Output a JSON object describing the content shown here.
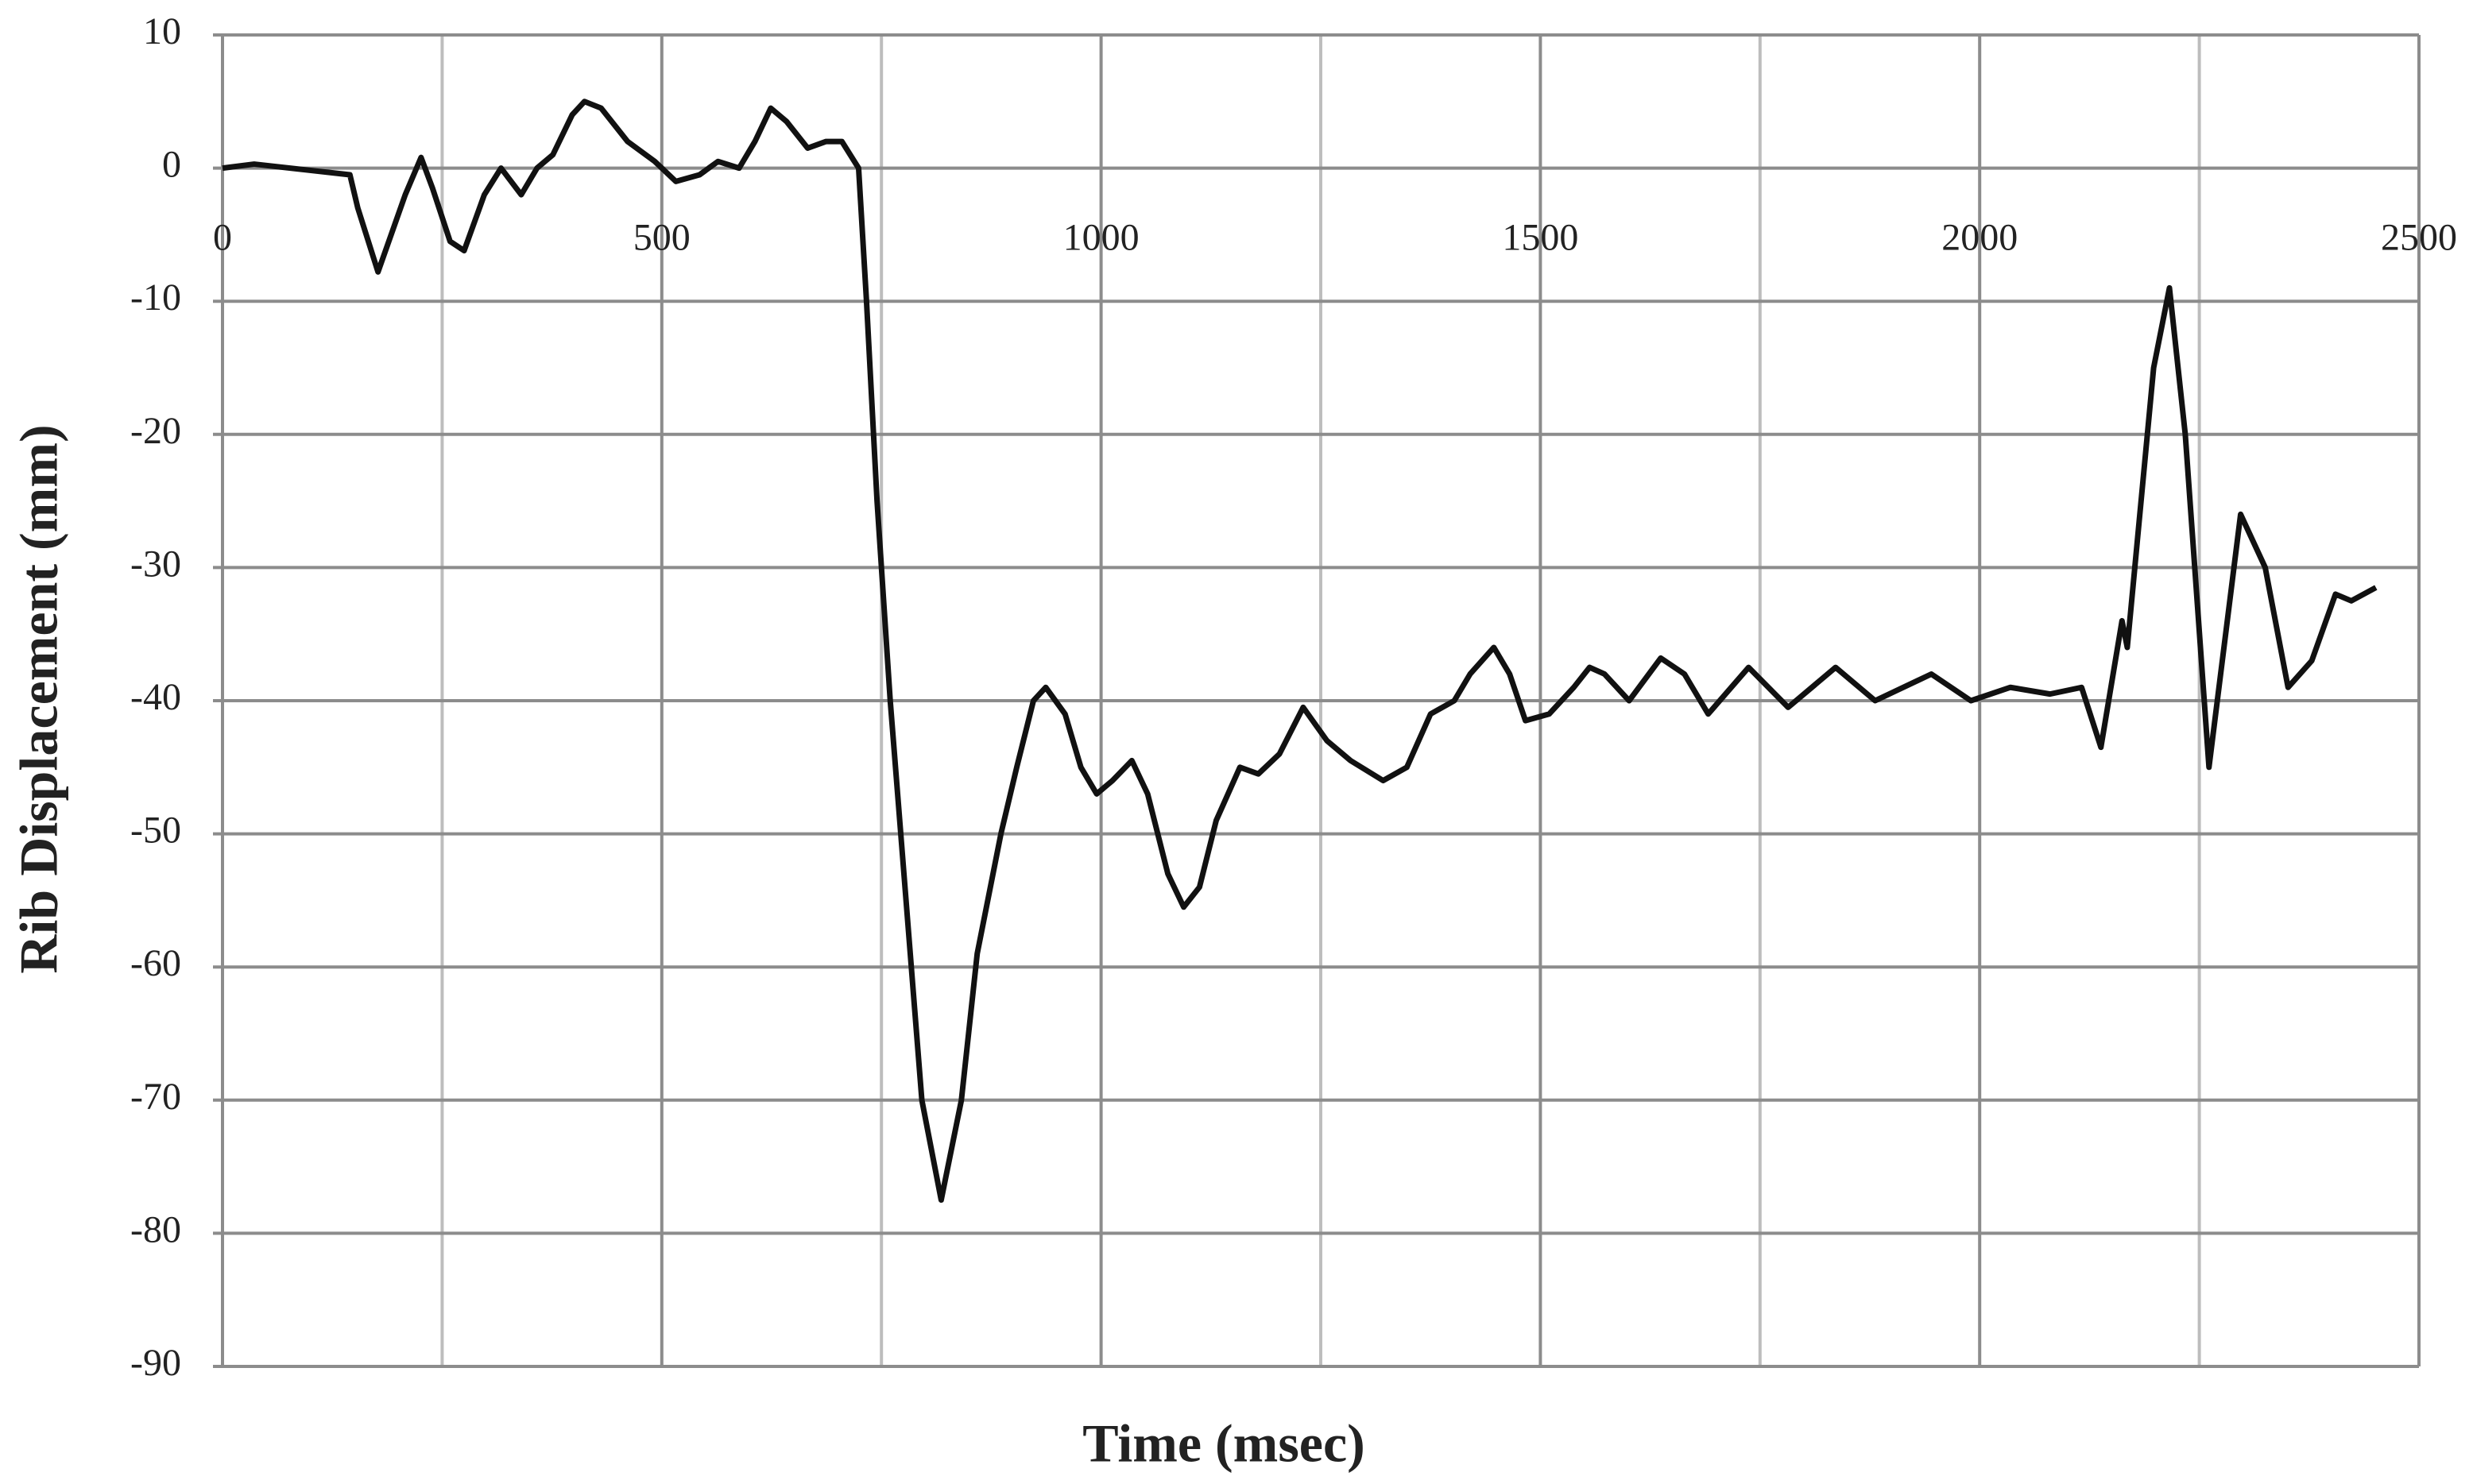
{
  "chart_data": {
    "type": "line",
    "x_label": "Time (msec)",
    "y_label": "Rib Displacement (mm)",
    "x": [
      0,
      36,
      145,
      154,
      177,
      208,
      226,
      239,
      259,
      275,
      298,
      317,
      340,
      358,
      376,
      398,
      412,
      431,
      461,
      492,
      516,
      543,
      564,
      588,
      606,
      624,
      642,
      666,
      687,
      705,
      724,
      733,
      745,
      760,
      778,
      796,
      818,
      841,
      859,
      886,
      904,
      923,
      937,
      959,
      977,
      995,
      1013,
      1035,
      1053,
      1076,
      1094,
      1112,
      1131,
      1158,
      1179,
      1203,
      1230,
      1257,
      1284,
      1321,
      1348,
      1375,
      1402,
      1420,
      1447,
      1465,
      1483,
      1510,
      1538,
      1556,
      1573,
      1601,
      1637,
      1664,
      1691,
      1737,
      1782,
      1836,
      1881,
      1945,
      1990,
      2035,
      2080,
      2116,
      2138,
      2162,
      2168,
      2198,
      2216,
      2234,
      2261,
      2297,
      2325,
      2351,
      2378,
      2405,
      2423,
      2451
    ],
    "series": [
      {
        "color": "#111111",
        "values": [
          0,
          0.3,
          -0.5,
          -3,
          -7.8,
          -2,
          0.8,
          -1.5,
          -5.5,
          -6.2,
          -2,
          0,
          -2,
          0,
          1,
          4,
          5,
          4.5,
          2,
          0.5,
          -1,
          -0.5,
          0.5,
          0,
          2,
          4.5,
          3.5,
          1.5,
          2,
          2,
          0,
          -10,
          -25,
          -40,
          -55,
          -70,
          -77.5,
          -70,
          -59,
          -50,
          -45,
          -40,
          -39,
          -41,
          -45,
          -47,
          -46,
          -44.5,
          -47,
          -53,
          -55.5,
          -54,
          -49,
          -45,
          -45.5,
          -44,
          -40.5,
          -43,
          -44.5,
          -46,
          -45,
          -41,
          -40,
          -38,
          -36,
          -38,
          -41.5,
          -41,
          -39,
          -37.5,
          -38,
          -40,
          -36.8,
          -38,
          -41,
          -37.5,
          -40.5,
          -37.5,
          -40,
          -38,
          -40,
          -39,
          -39.5,
          -39,
          -43.5,
          -34,
          -36,
          -15,
          -9,
          -20,
          -45,
          -26,
          -30,
          -39,
          -37,
          -32,
          -32.5,
          -31.5
        ]
      }
    ],
    "xlim": [
      0,
      2500
    ],
    "xticks": [
      0,
      500,
      1000,
      1500,
      2000,
      2500
    ],
    "x_minor_grid": [
      250,
      750,
      1250,
      1750,
      2250
    ],
    "ylim": [
      -90,
      10
    ],
    "yticks": [
      -90,
      -80,
      -70,
      -60,
      -50,
      -40,
      -30,
      -20,
      -10,
      0,
      10
    ],
    "grid": true
  }
}
